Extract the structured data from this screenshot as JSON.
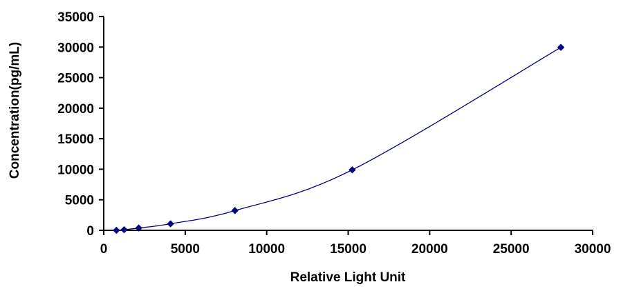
{
  "chart_data": {
    "type": "scatter",
    "title": "",
    "xlabel": "Relative Light Unit",
    "ylabel": "Concentration(pg/mL)",
    "xlim": [
      0,
      30000
    ],
    "ylim": [
      0,
      35000
    ],
    "x_ticks": [
      0,
      5000,
      10000,
      15000,
      20000,
      25000,
      30000
    ],
    "y_ticks": [
      0,
      5000,
      10000,
      15000,
      20000,
      25000,
      30000,
      35000
    ],
    "grid": false,
    "legend": "none",
    "series": [
      {
        "line": "smooth",
        "marker": "diamond",
        "color": "#000080",
        "points": [
          {
            "x": 780,
            "y": 0
          },
          {
            "x": 1250,
            "y": 94
          },
          {
            "x": 2150,
            "y": 375
          },
          {
            "x": 4100,
            "y": 1070
          },
          {
            "x": 8050,
            "y": 3230
          },
          {
            "x": 15250,
            "y": 9900
          },
          {
            "x": 28050,
            "y": 29950
          }
        ]
      }
    ]
  }
}
